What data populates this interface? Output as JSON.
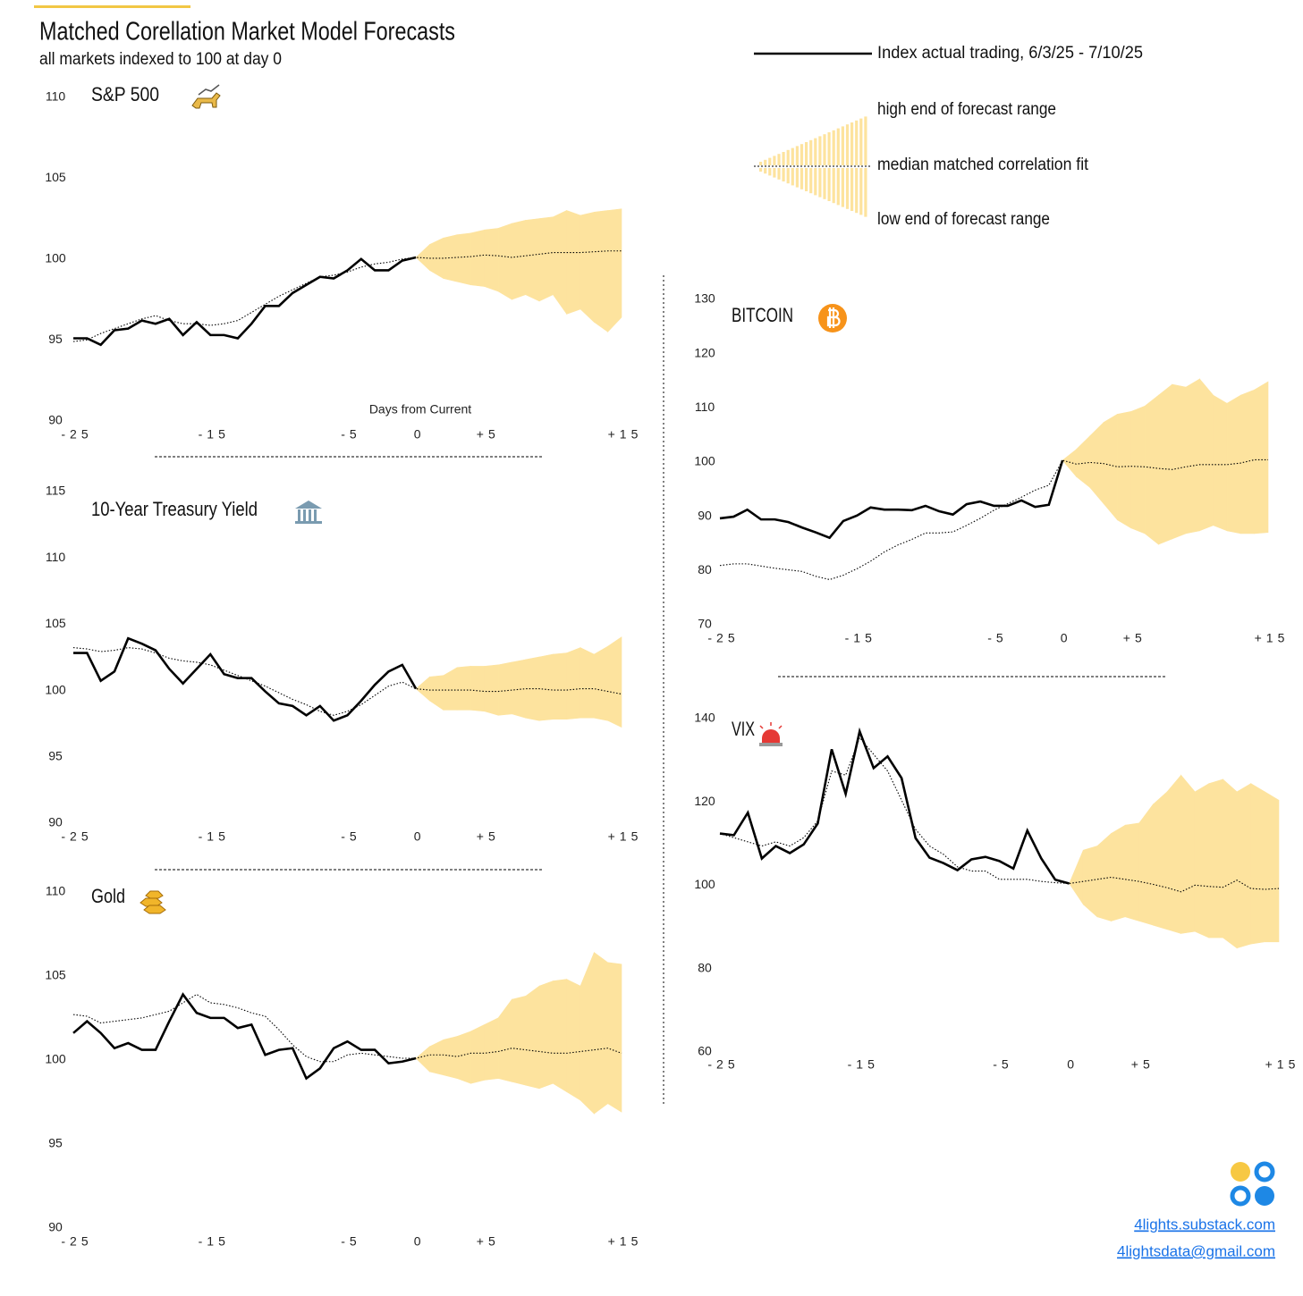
{
  "header": {
    "title": "Matched Corellation Market Model Forecasts",
    "subtitle": "all markets indexed to 100 at day 0"
  },
  "legend": {
    "actual": "Index actual trading, 6/3/25 - 7/10/25",
    "high": "high end of forecast range",
    "median": "median matched correlation fit",
    "low": "low end of forecast range"
  },
  "colors": {
    "actual": "#000000",
    "median": "#000000",
    "band": "#fde39e"
  },
  "chart_data": [
    {
      "type": "line",
      "title": "S&P 500",
      "xlabel": "Days from Current",
      "x": [
        -25,
        -24,
        -23,
        -22,
        -21,
        -20,
        -19,
        -18,
        -17,
        -16,
        -15,
        -14,
        -13,
        -12,
        -11,
        -10,
        -9,
        -8,
        -7,
        -6,
        -5,
        -4,
        -3,
        -2,
        -1,
        0,
        1,
        2,
        3,
        4,
        5,
        6,
        7,
        8,
        9,
        10,
        11,
        12,
        13,
        14,
        15
      ],
      "actual": [
        95.0,
        95.0,
        94.6,
        95.5,
        95.6,
        96.1,
        95.9,
        96.2,
        95.2,
        96.0,
        95.2,
        95.2,
        95.0,
        95.9,
        97.0,
        97.0,
        97.8,
        98.3,
        98.8,
        98.7,
        99.2,
        99.9,
        99.2,
        99.2,
        99.8,
        100,
        null,
        null,
        null,
        null,
        null,
        null,
        null,
        null,
        null,
        null,
        null,
        null,
        null,
        null,
        null
      ],
      "median": [
        94.8,
        94.9,
        95.3,
        95.6,
        95.9,
        96.2,
        96.4,
        96.1,
        95.9,
        95.9,
        95.8,
        95.9,
        96.1,
        96.6,
        97.1,
        97.6,
        98.0,
        98.4,
        98.8,
        98.9,
        99.1,
        99.4,
        99.6,
        99.7,
        99.9,
        100.0,
        99.95,
        99.95,
        100.0,
        100.05,
        100.15,
        100.1,
        100.0,
        100.1,
        100.2,
        100.3,
        100.3,
        100.3,
        100.35,
        100.4,
        100.4
      ],
      "high": [
        null,
        null,
        null,
        null,
        null,
        null,
        null,
        null,
        null,
        null,
        null,
        null,
        null,
        null,
        null,
        null,
        null,
        null,
        null,
        null,
        null,
        null,
        null,
        null,
        null,
        100,
        100.8,
        101.2,
        101.4,
        101.5,
        101.7,
        101.8,
        102.1,
        102.3,
        102.4,
        102.5,
        102.9,
        102.6,
        102.8,
        102.9,
        103.0
      ],
      "low": [
        null,
        null,
        null,
        null,
        null,
        null,
        null,
        null,
        null,
        null,
        null,
        null,
        null,
        null,
        null,
        null,
        null,
        null,
        null,
        null,
        null,
        null,
        null,
        null,
        null,
        100,
        99.2,
        98.7,
        98.5,
        98.3,
        98.2,
        97.9,
        97.4,
        97.7,
        97.3,
        97.7,
        96.5,
        96.8,
        96.0,
        95.4,
        96.3
      ],
      "xlim": [
        -25,
        15
      ],
      "ylim": [
        90,
        110
      ],
      "yticks": [
        90,
        95,
        100,
        105,
        110
      ],
      "xticks": [
        -25,
        -15,
        -5,
        0,
        {
          "value": 5,
          "label": "+5"
        },
        {
          "value": 15,
          "label": "+15"
        }
      ]
    },
    {
      "type": "line",
      "title": "10-Year Treasury Yield",
      "x": [
        -25,
        -24,
        -23,
        -22,
        -21,
        -20,
        -19,
        -18,
        -17,
        -16,
        -15,
        -14,
        -13,
        -12,
        -11,
        -10,
        -9,
        -8,
        -7,
        -6,
        -5,
        -4,
        -3,
        -2,
        -1,
        0,
        1,
        2,
        3,
        4,
        5,
        6,
        7,
        8,
        9,
        10,
        11,
        12,
        13,
        14,
        15
      ],
      "actual": [
        102.7,
        102.7,
        100.6,
        101.3,
        103.8,
        103.4,
        102.9,
        101.5,
        100.4,
        101.5,
        102.6,
        101.1,
        100.8,
        100.8,
        99.8,
        98.9,
        98.7,
        98.0,
        98.7,
        97.6,
        98.0,
        99.1,
        100.3,
        101.3,
        101.8,
        100,
        null,
        null,
        null,
        null,
        null,
        null,
        null,
        null,
        null,
        null,
        null,
        null,
        null,
        null,
        null
      ],
      "median": [
        103.1,
        103.0,
        102.8,
        102.9,
        103.1,
        103.0,
        102.7,
        102.3,
        102.1,
        102.0,
        101.8,
        101.4,
        101.0,
        100.6,
        100.2,
        99.7,
        99.2,
        98.8,
        98.3,
        98.0,
        98.3,
        98.8,
        99.5,
        100.2,
        100.5,
        100.0,
        99.9,
        99.9,
        99.9,
        99.9,
        99.8,
        99.8,
        99.9,
        100.0,
        100.0,
        99.9,
        99.9,
        100.0,
        100.0,
        99.8,
        99.6
      ],
      "high": [
        null,
        null,
        null,
        null,
        null,
        null,
        null,
        null,
        null,
        null,
        null,
        null,
        null,
        null,
        null,
        null,
        null,
        null,
        null,
        null,
        null,
        null,
        null,
        null,
        null,
        100,
        100.9,
        101.0,
        101.6,
        101.7,
        101.7,
        101.8,
        102.0,
        102.2,
        102.4,
        102.6,
        102.7,
        103.1,
        102.6,
        103.2,
        103.9
      ],
      "low": [
        null,
        null,
        null,
        null,
        null,
        null,
        null,
        null,
        null,
        null,
        null,
        null,
        null,
        null,
        null,
        null,
        null,
        null,
        null,
        null,
        null,
        null,
        null,
        null,
        null,
        100,
        99.1,
        98.4,
        98.4,
        98.4,
        98.3,
        98.0,
        98.1,
        97.8,
        97.6,
        97.7,
        97.7,
        97.8,
        97.8,
        97.6,
        97.1
      ],
      "xlim": [
        -25,
        15
      ],
      "ylim": [
        90,
        115
      ],
      "yticks": [
        90,
        95,
        100,
        105,
        110,
        115
      ],
      "xticks": [
        -25,
        -15,
        -5,
        0,
        {
          "value": 5,
          "label": "+5"
        },
        {
          "value": 15,
          "label": "+15"
        }
      ]
    },
    {
      "type": "line",
      "title": "Gold",
      "x": [
        -25,
        -24,
        -23,
        -22,
        -21,
        -20,
        -19,
        -18,
        -17,
        -16,
        -15,
        -14,
        -13,
        -12,
        -11,
        -10,
        -9,
        -8,
        -7,
        -6,
        -5,
        -4,
        -3,
        -2,
        -1,
        0,
        1,
        2,
        3,
        4,
        5,
        6,
        7,
        8,
        9,
        10,
        11,
        12,
        13,
        14,
        15
      ],
      "actual": [
        101.5,
        102.2,
        101.5,
        100.6,
        100.9,
        100.5,
        100.5,
        102.2,
        103.8,
        102.7,
        102.4,
        102.4,
        101.8,
        102.0,
        100.2,
        100.5,
        100.6,
        98.8,
        99.4,
        100.6,
        101.0,
        100.5,
        100.5,
        99.7,
        99.8,
        100,
        null,
        null,
        null,
        null,
        null,
        null,
        null,
        null,
        null,
        null,
        null,
        null,
        null,
        null,
        null
      ],
      "median": [
        102.6,
        102.5,
        102.1,
        102.2,
        102.3,
        102.4,
        102.6,
        102.8,
        103.3,
        103.8,
        103.3,
        103.2,
        103.0,
        102.7,
        102.5,
        101.7,
        100.8,
        100.1,
        99.8,
        99.8,
        100.2,
        100.3,
        100.2,
        100.1,
        100.0,
        100.0,
        100.2,
        100.2,
        100.1,
        100.3,
        100.3,
        100.4,
        100.6,
        100.5,
        100.4,
        100.3,
        100.3,
        100.4,
        100.5,
        100.6,
        100.3
      ],
      "high": [
        null,
        null,
        null,
        null,
        null,
        null,
        null,
        null,
        null,
        null,
        null,
        null,
        null,
        null,
        null,
        null,
        null,
        null,
        null,
        null,
        null,
        null,
        null,
        null,
        null,
        100,
        100.7,
        101.1,
        101.3,
        101.6,
        102.0,
        102.4,
        103.5,
        103.7,
        104.3,
        104.6,
        104.7,
        104.3,
        106.3,
        105.7,
        105.6
      ],
      "low": [
        null,
        null,
        null,
        null,
        null,
        null,
        null,
        null,
        null,
        null,
        null,
        null,
        null,
        null,
        null,
        null,
        null,
        null,
        null,
        null,
        null,
        null,
        null,
        null,
        null,
        100,
        99.2,
        99.0,
        98.8,
        98.5,
        98.7,
        98.8,
        98.6,
        98.4,
        98.2,
        98.5,
        98.0,
        97.5,
        96.7,
        97.3,
        96.8
      ],
      "xlim": [
        -25,
        15
      ],
      "ylim": [
        90,
        110
      ],
      "yticks": [
        90,
        95,
        100,
        105,
        110
      ],
      "xticks": [
        -25,
        -15,
        -5,
        0,
        {
          "value": 5,
          "label": "+5"
        },
        {
          "value": 15,
          "label": "+15"
        }
      ]
    },
    {
      "type": "line",
      "title": "BITCOIN",
      "x": [
        -25,
        -24,
        -23,
        -22,
        -21,
        -20,
        -19,
        -18,
        -17,
        -16,
        -15,
        -14,
        -13,
        -12,
        -11,
        -10,
        -9,
        -8,
        -7,
        -6,
        -5,
        -4,
        -3,
        -2,
        -1,
        0,
        1,
        2,
        3,
        4,
        5,
        6,
        7,
        8,
        9,
        10,
        11,
        12,
        13,
        14,
        15
      ],
      "actual": [
        89.3,
        89.6,
        90.9,
        89.1,
        89.1,
        88.6,
        87.6,
        86.7,
        85.7,
        88.8,
        89.8,
        91.3,
        90.9,
        90.9,
        90.8,
        91.6,
        90.6,
        90.0,
        91.9,
        92.4,
        91.6,
        91.6,
        92.6,
        91.4,
        91.8,
        100,
        null,
        null,
        null,
        null,
        null,
        null,
        null,
        null,
        null,
        null,
        null,
        null,
        null,
        null,
        null
      ],
      "median": [
        80.6,
        80.9,
        80.9,
        80.5,
        80.1,
        79.8,
        79.5,
        78.6,
        78.0,
        78.8,
        80.0,
        81.4,
        83.1,
        84.4,
        85.4,
        86.6,
        86.6,
        86.8,
        88.0,
        89.3,
        90.8,
        92.0,
        93.2,
        94.5,
        95.4,
        100.0,
        99.3,
        99.6,
        99.4,
        98.8,
        98.9,
        98.8,
        98.5,
        98.3,
        98.8,
        99.2,
        99.2,
        99.2,
        99.5,
        100.1,
        100.1
      ],
      "high": [
        null,
        null,
        null,
        null,
        null,
        null,
        null,
        null,
        null,
        null,
        null,
        null,
        null,
        null,
        null,
        null,
        null,
        null,
        null,
        null,
        null,
        null,
        null,
        null,
        null,
        100,
        102,
        104.5,
        107,
        108.5,
        109,
        110,
        112,
        114,
        113.5,
        115,
        112,
        110.5,
        112,
        113,
        114.5
      ],
      "low": [
        null,
        null,
        null,
        null,
        null,
        null,
        null,
        null,
        null,
        null,
        null,
        null,
        null,
        null,
        null,
        null,
        null,
        null,
        null,
        null,
        null,
        null,
        null,
        null,
        null,
        100,
        97,
        95,
        92,
        89,
        87.5,
        86.5,
        84.5,
        85.5,
        86.5,
        87,
        88,
        87,
        86.5,
        86.5,
        86.7
      ],
      "xlim": [
        -25,
        15
      ],
      "ylim": [
        70,
        130
      ],
      "yticks": [
        70,
        80,
        90,
        100,
        110,
        120,
        130
      ],
      "xticks": [
        -25,
        -15,
        -5,
        0,
        {
          "value": 5,
          "label": "+5"
        },
        {
          "value": 15,
          "label": "+15"
        }
      ]
    },
    {
      "type": "line",
      "title": "VIX",
      "x": [
        -25,
        -24,
        -23,
        -22,
        -21,
        -20,
        -19,
        -18,
        -17,
        -16,
        -15,
        -14,
        -13,
        -12,
        -11,
        -10,
        -9,
        -8,
        -7,
        -6,
        -5,
        -4,
        -3,
        -2,
        -1,
        0,
        1,
        2,
        3,
        4,
        5,
        6,
        7,
        8,
        9,
        10,
        11,
        12,
        13,
        14,
        15
      ],
      "actual": [
        112.0,
        111.6,
        117.0,
        106.0,
        109.0,
        107.3,
        109.4,
        114.4,
        132.2,
        121.5,
        136.5,
        127.7,
        130.5,
        125.3,
        110.9,
        106.2,
        104.9,
        103.2,
        105.8,
        106.4,
        105.4,
        103.6,
        112.7,
        106.0,
        100.9,
        100,
        null,
        null,
        null,
        null,
        null,
        null,
        null,
        null,
        null,
        null,
        null,
        null,
        null,
        null,
        null
      ],
      "median": [
        112,
        111,
        110,
        109,
        110,
        109,
        111,
        115,
        127,
        126,
        135,
        131,
        127,
        120,
        113,
        109,
        107,
        104,
        103,
        103,
        101,
        101,
        101,
        100.5,
        100.2,
        100,
        100.5,
        101.0,
        101.5,
        101.0,
        100.5,
        99.8,
        99.0,
        98.0,
        99.6,
        99.3,
        99.1,
        100.8,
        98.8,
        98.6,
        98.8
      ],
      "high": [
        null,
        null,
        null,
        null,
        null,
        null,
        null,
        null,
        null,
        null,
        null,
        null,
        null,
        null,
        null,
        null,
        null,
        null,
        null,
        null,
        null,
        null,
        null,
        null,
        null,
        100,
        108,
        109,
        112,
        114,
        114.5,
        119,
        122,
        126,
        122,
        124,
        125,
        122,
        124,
        122,
        120
      ],
      "low": [
        null,
        null,
        null,
        null,
        null,
        null,
        null,
        null,
        null,
        null,
        null,
        null,
        null,
        null,
        null,
        null,
        null,
        null,
        null,
        null,
        null,
        null,
        null,
        null,
        null,
        100,
        95,
        92,
        91,
        92,
        91,
        90,
        89,
        88,
        88.5,
        87,
        87,
        84.5,
        85.5,
        86,
        86
      ],
      "xlim": [
        -25,
        15
      ],
      "ylim": [
        60,
        140
      ],
      "yticks": [
        60,
        80,
        100,
        120,
        140
      ],
      "xticks": [
        -25,
        -15,
        -5,
        0,
        {
          "value": 5,
          "label": "+5"
        },
        {
          "value": 15,
          "label": "+15"
        }
      ]
    }
  ],
  "footer": {
    "links": [
      "4lights.substack.com",
      "4lightsdata@gmail.com"
    ]
  }
}
